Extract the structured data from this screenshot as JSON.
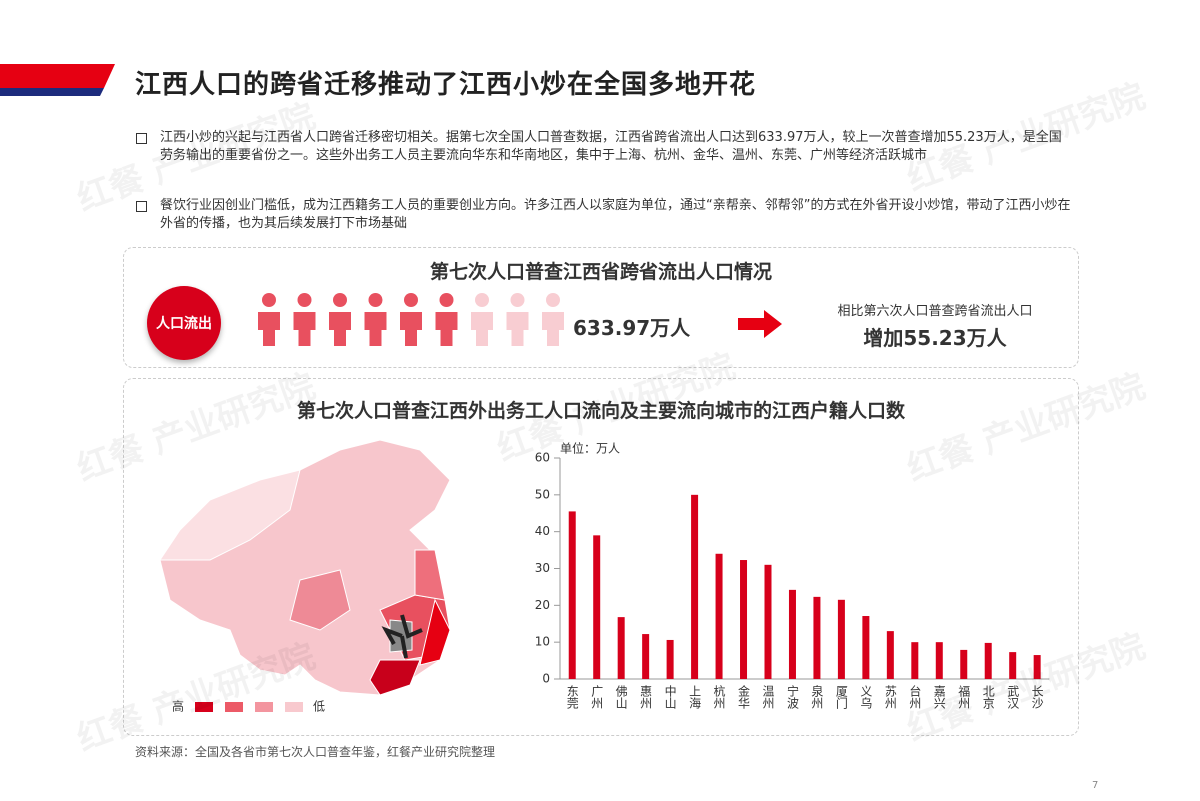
{
  "header": {
    "title": "江西人口的跨省迁移推动了江西小炒在全国多地开花"
  },
  "bullets": [
    "江西小炒的兴起与江西省人口跨省迁移密切相关。据第七次全国人口普查数据，江西省跨省流出人口达到633.97万人，较上一次普查增加55.23万人，是全国劳务输出的重要省份之一。这些外出务工人员主要流向华东和华南地区，集中于上海、杭州、金华、温州、东莞、广州等经济活跃城市",
    "餐饮行业因创业门槛低，成为江西籍务工人员的重要创业方向。许多江西人以家庭为单位，通过“亲帮亲、邻帮邻”的方式在外省开设小炒馆，带动了江西小炒在外省的传播，也为其后续发展打下市场基础"
  ],
  "outflow": {
    "title": "第七次人口普查江西省跨省流出人口情况",
    "badge": "人口流出",
    "total": "633.97万人",
    "compare_label": "相比第六次人口普查跨省流出人口",
    "compare_value": "增加55.23万人"
  },
  "flow": {
    "title": "第七次人口普查江西外出务工人口流向及主要流向城市的江西户籍人口数",
    "map_legend": [
      "高",
      "低"
    ]
  },
  "chart_data": {
    "type": "bar",
    "unit": "单位：万人",
    "categories": [
      "东莞",
      "广州",
      "佛山",
      "惠州",
      "中山",
      "上海",
      "杭州",
      "金华",
      "温州",
      "宁波",
      "泉州",
      "厦门",
      "义乌",
      "苏州",
      "台州",
      "嘉兴",
      "福州",
      "北京",
      "武汉",
      "长沙"
    ],
    "values": [
      45.5,
      39,
      16.8,
      12.2,
      10.6,
      50,
      34,
      32.3,
      31,
      24.2,
      22.3,
      21.5,
      17.1,
      13,
      10,
      10,
      7.9,
      9.8,
      7.3,
      6.5
    ],
    "color": "#d7001b",
    "ylim": [
      0,
      60
    ],
    "yticks": [
      0,
      10,
      20,
      30,
      40,
      50,
      60
    ],
    "grid": false
  },
  "source": "资料来源：全国及各省市第七次人口普查年鉴，红餐产业研究院整理",
  "page_number": "7",
  "watermark": "红餐 产业研究院"
}
